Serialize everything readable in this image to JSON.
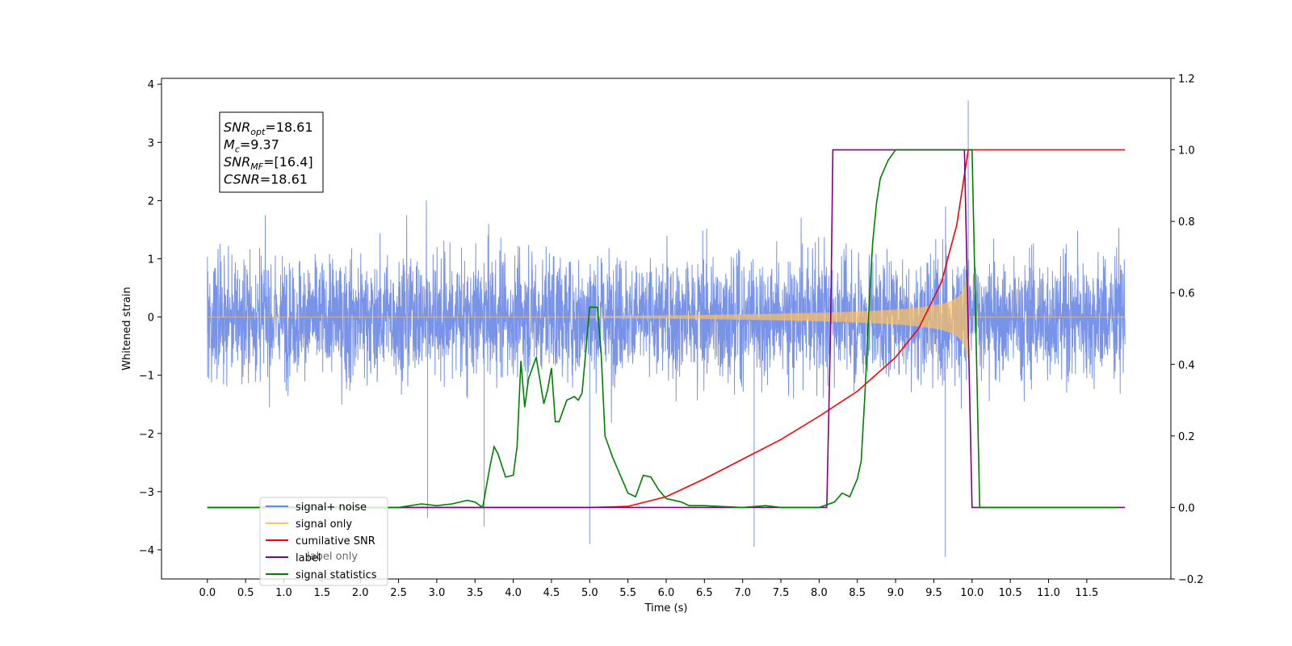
{
  "chart_data": {
    "type": "line",
    "xlabel": "Time (s)",
    "ylabel_left": "Whitened strain",
    "xlim": [
      -0.6,
      12.6
    ],
    "ylim_left": [
      -4.5,
      4.1
    ],
    "ylim_right": [
      -0.2,
      1.2
    ],
    "x_ticks": [
      "0.0",
      "0.5",
      "1.0",
      "1.5",
      "2.0",
      "2.5",
      "3.0",
      "3.5",
      "4.0",
      "4.5",
      "5.0",
      "5.5",
      "6.0",
      "6.5",
      "7.0",
      "7.5",
      "8.0",
      "8.5",
      "9.0",
      "9.5",
      "10.0",
      "10.5",
      "11.0",
      "11.5"
    ],
    "y_ticks_left": [
      "4",
      "3",
      "2",
      "1",
      "0",
      "−1",
      "−2",
      "−3",
      "−4"
    ],
    "y_ticks_right": [
      "1.2",
      "1.0",
      "0.8",
      "0.6",
      "0.4",
      "0.2",
      "0.0",
      "−0.2"
    ],
    "grid": false,
    "legend_position": "bottom-left",
    "annotation": {
      "lines": [
        {
          "var": "SNR",
          "sub": "opt",
          "val": "=18.61"
        },
        {
          "var": "M",
          "sub": "c",
          "val": "=9.37"
        },
        {
          "var": "SNR",
          "sub": "MF",
          "val": "=[16.4]"
        },
        {
          "var": "CSNR",
          "sub": "",
          "val": "=18.61"
        }
      ]
    },
    "noise": {
      "x_range": [
        0.0,
        12.0
      ],
      "typical_amplitude": 1.85,
      "max_value": 3.72,
      "min_value": -4.12
    },
    "signal_only": {
      "start": 5.0,
      "merger_time": 9.95,
      "peak_amplitude": 1.4
    },
    "series": [
      {
        "name": "signal+ noise",
        "axis": "left",
        "color": "#6a87e6"
      },
      {
        "name": "signal only",
        "axis": "left",
        "color": "#ffc060"
      },
      {
        "name": "cumilative SNR",
        "axis": "right",
        "color": "#ff0000",
        "x": [
          0.0,
          5.0,
          5.5,
          6.0,
          6.5,
          7.0,
          7.5,
          8.0,
          8.5,
          9.0,
          9.3,
          9.6,
          9.8,
          9.95,
          10.0,
          12.0
        ],
        "y": [
          0.0,
          0.0,
          0.003,
          0.03,
          0.08,
          0.135,
          0.19,
          0.255,
          0.325,
          0.42,
          0.5,
          0.63,
          0.79,
          1.0,
          1.0,
          1.0
        ]
      },
      {
        "name": "label",
        "axis": "right",
        "color": "#800080",
        "x": [
          0.0,
          8.1,
          8.15,
          8.18,
          9.9,
          9.95,
          10.0,
          12.0
        ],
        "y": [
          0.0,
          0.0,
          0.5,
          1.0,
          1.0,
          0.5,
          0.0,
          0.0
        ],
        "faint_legend_entry": "label only"
      },
      {
        "name": "signal statistics",
        "axis": "right",
        "color": "#008000",
        "x": [
          0.0,
          2.5,
          2.8,
          3.0,
          3.2,
          3.4,
          3.5,
          3.6,
          3.7,
          3.75,
          3.8,
          3.9,
          4.0,
          4.05,
          4.1,
          4.15,
          4.2,
          4.3,
          4.4,
          4.45,
          4.5,
          4.55,
          4.6,
          4.7,
          4.8,
          4.85,
          4.9,
          5.0,
          5.05,
          5.1,
          5.15,
          5.2,
          5.3,
          5.4,
          5.5,
          5.6,
          5.7,
          5.8,
          5.9,
          6.0,
          6.1,
          6.2,
          6.3,
          6.5,
          7.0,
          7.3,
          7.5,
          8.0,
          8.2,
          8.3,
          8.4,
          8.5,
          8.55,
          8.6,
          8.65,
          8.7,
          8.75,
          8.8,
          8.9,
          9.0,
          9.1,
          9.2,
          10.0,
          10.1,
          11.9
        ],
        "y": [
          0.0,
          0.0,
          0.01,
          0.005,
          0.01,
          0.02,
          0.015,
          0.0,
          0.12,
          0.17,
          0.15,
          0.085,
          0.09,
          0.17,
          0.41,
          0.28,
          0.36,
          0.42,
          0.29,
          0.33,
          0.39,
          0.24,
          0.24,
          0.3,
          0.31,
          0.3,
          0.32,
          0.56,
          0.56,
          0.56,
          0.43,
          0.2,
          0.14,
          0.09,
          0.04,
          0.03,
          0.09,
          0.085,
          0.05,
          0.025,
          0.02,
          0.015,
          0.005,
          0.005,
          0.0,
          0.005,
          0.0,
          0.0,
          0.015,
          0.04,
          0.03,
          0.08,
          0.13,
          0.32,
          0.55,
          0.74,
          0.85,
          0.92,
          0.97,
          1.0,
          1.0,
          1.0,
          1.0,
          0.0,
          0.0
        ]
      }
    ]
  }
}
